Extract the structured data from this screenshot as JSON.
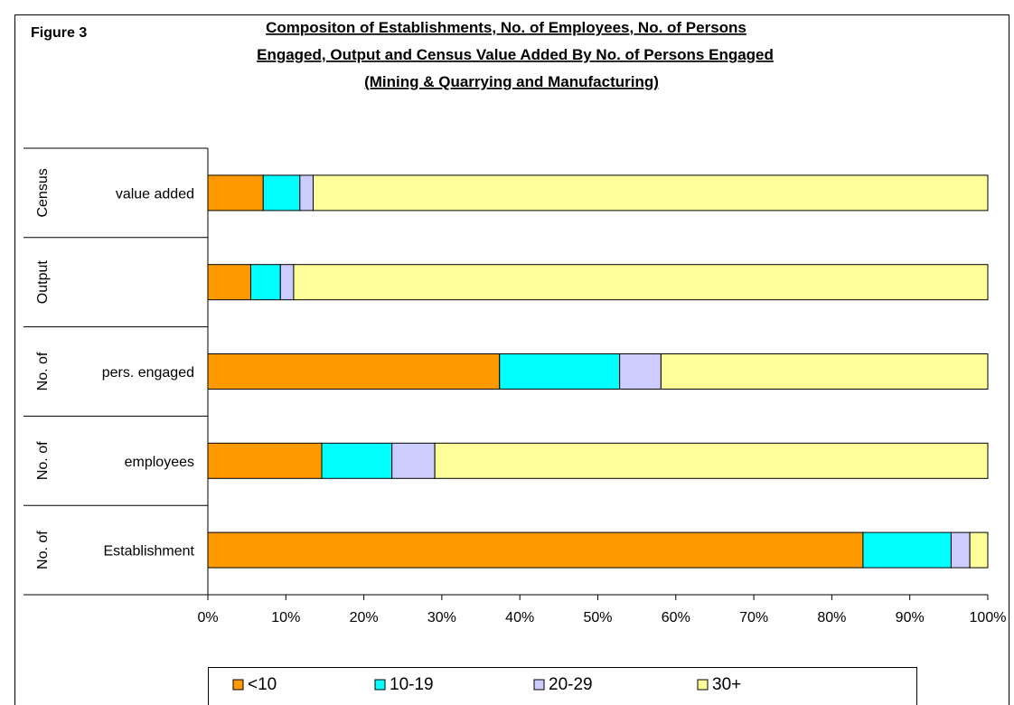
{
  "figure_label": "Figure 3",
  "title_lines": [
    "Compositon of Establishments, No. of Employees, No. of Persons",
    "Engaged, Output and Census Value Added By No. of Persons Engaged",
    "(Mining & Quarrying and Manufacturing)"
  ],
  "chart_data": {
    "type": "bar",
    "orientation": "horizontal",
    "stacked": "percent",
    "title": "Compositon of Establishments, No. of Employees, No. of Persons Engaged, Output and Census Value Added By No. of Persons Engaged (Mining & Quarrying and Manufacturing)",
    "categories": [
      {
        "group": "Census",
        "label": "value added"
      },
      {
        "group": "Output",
        "label": ""
      },
      {
        "group": "No. of",
        "label": "pers. engaged"
      },
      {
        "group": "No. of",
        "label": "employees"
      },
      {
        "group": "No. of",
        "label": "Establishment"
      }
    ],
    "series": [
      {
        "name": "<10",
        "color": "#FF9900",
        "values": [
          7.1,
          5.5,
          37.4,
          14.6,
          84.0
        ]
      },
      {
        "name": "10-19",
        "color": "#00FFFF",
        "values": [
          4.7,
          3.8,
          15.4,
          9.0,
          11.3
        ]
      },
      {
        "name": "20-29",
        "color": "#CCCCFF",
        "values": [
          1.7,
          1.7,
          5.3,
          5.5,
          2.4
        ]
      },
      {
        "name": "30+",
        "color": "#FFFF99",
        "values": [
          86.5,
          89.0,
          41.9,
          70.9,
          2.3
        ]
      }
    ],
    "xaxis": {
      "ticks": [
        "0%",
        "10%",
        "20%",
        "30%",
        "40%",
        "50%",
        "60%",
        "70%",
        "80%",
        "90%",
        "100%"
      ],
      "range": [
        0,
        100
      ],
      "unit": "%"
    },
    "grid": false,
    "legend": {
      "position": "bottom"
    }
  }
}
